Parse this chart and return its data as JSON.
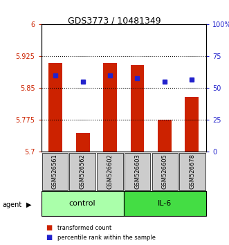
{
  "title": "GDS3773 / 10481349",
  "samples": [
    "GSM526561",
    "GSM526562",
    "GSM526602",
    "GSM526603",
    "GSM526605",
    "GSM526678"
  ],
  "groups": [
    "control",
    "control",
    "control",
    "IL-6",
    "IL-6",
    "IL-6"
  ],
  "bar_values": [
    5.91,
    5.745,
    5.91,
    5.905,
    5.775,
    5.83
  ],
  "dot_values": [
    60,
    55,
    60,
    58,
    55,
    57
  ],
  "bar_bottom": 5.7,
  "ylim_left": [
    5.7,
    6.0
  ],
  "ylim_right": [
    0,
    100
  ],
  "yticks_left": [
    5.7,
    5.775,
    5.85,
    5.925,
    6.0
  ],
  "ytick_labels_left": [
    "5.7",
    "5.775",
    "5.85",
    "5.925",
    "6"
  ],
  "yticks_right": [
    0,
    25,
    50,
    75,
    100
  ],
  "ytick_labels_right": [
    "0",
    "25",
    "50",
    "75",
    "100%"
  ],
  "hlines": [
    5.775,
    5.85,
    5.925
  ],
  "bar_color": "#cc2200",
  "dot_color": "#2222cc",
  "control_color": "#aaffaa",
  "il6_color": "#44dd44",
  "label_bg_color": "#cccccc",
  "agent_label": "agent",
  "legend_bar": "transformed count",
  "legend_dot": "percentile rank within the sample"
}
